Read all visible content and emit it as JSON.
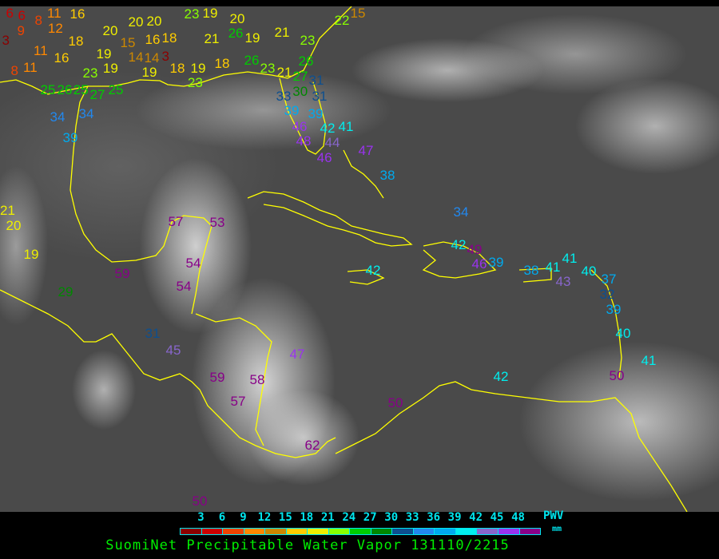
{
  "title": "SuomiNet Precipitable Water Vapor 131110/2215",
  "legend": {
    "unit_label": "PWV",
    "unit": "mm",
    "ticks": [
      "3",
      "6",
      "9",
      "12",
      "15",
      "18",
      "21",
      "24",
      "27",
      "30",
      "33",
      "36",
      "39",
      "42",
      "45",
      "48"
    ],
    "colors": [
      "#8b0000",
      "#cc0000",
      "#ee4400",
      "#ff8800",
      "#cc8800",
      "#ffcc00",
      "#eeee00",
      "#88ff00",
      "#00cc00",
      "#008800",
      "#0d4f8f",
      "#2288ee",
      "#00aaee",
      "#00eeee",
      "#8866cc",
      "#9933ee",
      "#880088"
    ]
  },
  "coastline_color": "#ffff00",
  "stations": [
    {
      "value": "6"
    },
    {
      "value": "6"
    },
    {
      "value": "8"
    },
    {
      "value": "11"
    },
    {
      "value": "16"
    },
    {
      "value": "3"
    },
    {
      "value": "9"
    },
    {
      "value": "12"
    },
    {
      "value": "18"
    },
    {
      "value": "8"
    },
    {
      "value": "11"
    },
    {
      "value": "11"
    },
    {
      "value": "16"
    },
    {
      "value": "19"
    },
    {
      "value": "19"
    },
    {
      "value": "23"
    },
    {
      "value": "20"
    },
    {
      "value": "15"
    },
    {
      "value": "20"
    },
    {
      "value": "20"
    },
    {
      "value": "16"
    },
    {
      "value": "18"
    },
    {
      "value": "14"
    },
    {
      "value": "14"
    },
    {
      "value": "3"
    },
    {
      "value": "19"
    },
    {
      "value": "18"
    },
    {
      "value": "19"
    },
    {
      "value": "18"
    },
    {
      "value": "23"
    },
    {
      "value": "26"
    },
    {
      "value": "23"
    },
    {
      "value": "21"
    },
    {
      "value": "27"
    },
    {
      "value": "26"
    },
    {
      "value": "31"
    },
    {
      "value": "30"
    },
    {
      "value": "33"
    },
    {
      "value": "31"
    },
    {
      "value": "39"
    },
    {
      "value": "39"
    },
    {
      "value": "23"
    },
    {
      "value": "19"
    },
    {
      "value": "20"
    },
    {
      "value": "26"
    },
    {
      "value": "19"
    },
    {
      "value": "21"
    },
    {
      "value": "21"
    },
    {
      "value": "23"
    },
    {
      "value": "22"
    },
    {
      "value": "15"
    },
    {
      "value": "25"
    },
    {
      "value": "26"
    },
    {
      "value": "25"
    },
    {
      "value": "27"
    },
    {
      "value": "25"
    },
    {
      "value": "34"
    },
    {
      "value": "34"
    },
    {
      "value": "39"
    },
    {
      "value": "46"
    },
    {
      "value": "48"
    },
    {
      "value": "42"
    },
    {
      "value": "44"
    },
    {
      "value": "46"
    },
    {
      "value": "41"
    },
    {
      "value": "47"
    },
    {
      "value": "38"
    },
    {
      "value": "34"
    },
    {
      "value": "42"
    },
    {
      "value": "49"
    },
    {
      "value": "46"
    },
    {
      "value": "39"
    },
    {
      "value": "38"
    },
    {
      "value": "41"
    },
    {
      "value": "41"
    },
    {
      "value": "43"
    },
    {
      "value": "40"
    },
    {
      "value": "37"
    },
    {
      "value": "32"
    },
    {
      "value": "39"
    },
    {
      "value": "40"
    },
    {
      "value": "41"
    },
    {
      "value": "50"
    },
    {
      "value": "42"
    },
    {
      "value": "42"
    },
    {
      "value": "21"
    },
    {
      "value": "20"
    },
    {
      "value": "19"
    },
    {
      "value": "29"
    },
    {
      "value": "57"
    },
    {
      "value": "53"
    },
    {
      "value": "59"
    },
    {
      "value": "54"
    },
    {
      "value": "54"
    },
    {
      "value": "31"
    },
    {
      "value": "45"
    },
    {
      "value": "47"
    },
    {
      "value": "59"
    },
    {
      "value": "58"
    },
    {
      "value": "57"
    },
    {
      "value": "50"
    },
    {
      "value": "62"
    },
    {
      "value": "50"
    }
  ]
}
